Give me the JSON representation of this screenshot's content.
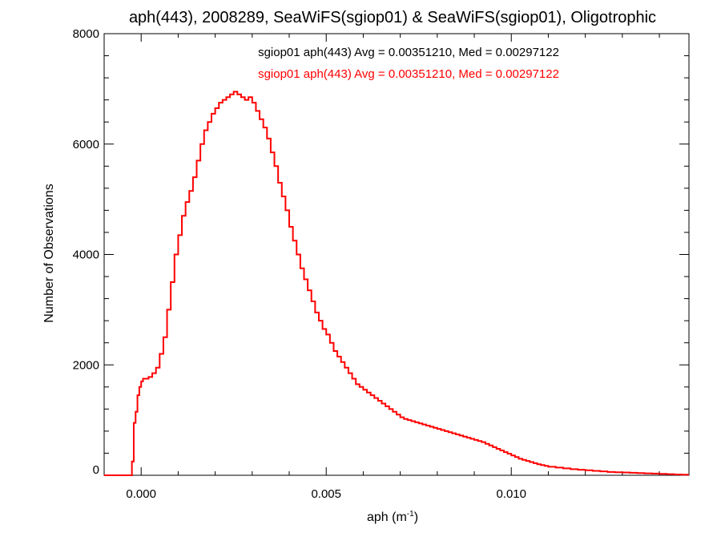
{
  "chart_data": {
    "type": "line",
    "step": true,
    "title": "aph(443), 2008289, SeaWiFS(sgiop01) & SeaWiFS(sgiop01), Oligotrophic",
    "xlabel": "aph (m",
    "xlabel_sup": "-1",
    "xlabel_close": ")",
    "ylabel": "Number of Observations",
    "xlim": [
      -0.001,
      0.0148
    ],
    "ylim": [
      0,
      8000
    ],
    "grid": false,
    "x_ticks": [
      0.0,
      0.005,
      0.01
    ],
    "x_tick_labels": [
      "0.000",
      "0.005",
      "0.010"
    ],
    "y_ticks": [
      0,
      2000,
      4000,
      6000,
      8000
    ],
    "y_tick_labels": [
      "0",
      "2000",
      "4000",
      "6000",
      "8000"
    ],
    "annotations": [
      {
        "text": "sgiop01 aph(443) Avg = 0.00351210, Med = 0.00297122",
        "color": "#000000"
      },
      {
        "text": "sgiop01 aph(443) Avg = 0.00351210, Med = 0.00297122",
        "color": "#ff0000"
      }
    ],
    "series": [
      {
        "color": "#ff0000",
        "points": [
          [
            -0.001,
            0
          ],
          [
            -0.0003,
            0
          ],
          [
            -0.00025,
            250
          ],
          [
            -0.0002,
            950
          ],
          [
            -0.00015,
            1150
          ],
          [
            -0.0001,
            1450
          ],
          [
            -5e-05,
            1600
          ],
          [
            0.0,
            1700
          ],
          [
            5e-05,
            1750
          ],
          [
            0.0001,
            1750
          ],
          [
            0.0002,
            1780
          ],
          [
            0.0003,
            1850
          ],
          [
            0.0004,
            1950
          ],
          [
            0.0005,
            2200
          ],
          [
            0.0006,
            2500
          ],
          [
            0.0007,
            3000
          ],
          [
            0.0008,
            3500
          ],
          [
            0.0009,
            4000
          ],
          [
            0.001,
            4350
          ],
          [
            0.0011,
            4700
          ],
          [
            0.0012,
            4950
          ],
          [
            0.0013,
            5150
          ],
          [
            0.0014,
            5400
          ],
          [
            0.0015,
            5700
          ],
          [
            0.0016,
            6000
          ],
          [
            0.0017,
            6250
          ],
          [
            0.0018,
            6400
          ],
          [
            0.0019,
            6550
          ],
          [
            0.002,
            6650
          ],
          [
            0.0021,
            6750
          ],
          [
            0.0022,
            6800
          ],
          [
            0.0023,
            6850
          ],
          [
            0.0024,
            6900
          ],
          [
            0.0025,
            6950
          ],
          [
            0.0026,
            6900
          ],
          [
            0.0027,
            6850
          ],
          [
            0.0028,
            6800
          ],
          [
            0.0029,
            6850
          ],
          [
            0.003,
            6750
          ],
          [
            0.0031,
            6600
          ],
          [
            0.0032,
            6450
          ],
          [
            0.0033,
            6300
          ],
          [
            0.0034,
            6100
          ],
          [
            0.0035,
            5850
          ],
          [
            0.0036,
            5600
          ],
          [
            0.0037,
            5300
          ],
          [
            0.0038,
            5050
          ],
          [
            0.0039,
            4800
          ],
          [
            0.004,
            4500
          ],
          [
            0.0041,
            4250
          ],
          [
            0.0042,
            4000
          ],
          [
            0.0043,
            3750
          ],
          [
            0.0044,
            3550
          ],
          [
            0.0045,
            3350
          ],
          [
            0.0046,
            3150
          ],
          [
            0.0047,
            2950
          ],
          [
            0.0048,
            2800
          ],
          [
            0.0049,
            2650
          ],
          [
            0.005,
            2550
          ],
          [
            0.0051,
            2400
          ],
          [
            0.0052,
            2250
          ],
          [
            0.0053,
            2150
          ],
          [
            0.0054,
            2050
          ],
          [
            0.0055,
            1950
          ],
          [
            0.0056,
            1850
          ],
          [
            0.0057,
            1750
          ],
          [
            0.0058,
            1650
          ],
          [
            0.0059,
            1600
          ],
          [
            0.006,
            1550
          ],
          [
            0.0061,
            1500
          ],
          [
            0.0062,
            1450
          ],
          [
            0.0063,
            1400
          ],
          [
            0.0064,
            1350
          ],
          [
            0.0065,
            1300
          ],
          [
            0.0066,
            1250
          ],
          [
            0.0067,
            1200
          ],
          [
            0.0068,
            1150
          ],
          [
            0.0069,
            1100
          ],
          [
            0.007,
            1050
          ],
          [
            0.0071,
            1020
          ],
          [
            0.0072,
            1000
          ],
          [
            0.0073,
            980
          ],
          [
            0.0074,
            960
          ],
          [
            0.0075,
            940
          ],
          [
            0.0076,
            920
          ],
          [
            0.0077,
            900
          ],
          [
            0.0078,
            880
          ],
          [
            0.0079,
            860
          ],
          [
            0.008,
            840
          ],
          [
            0.0081,
            820
          ],
          [
            0.0082,
            800
          ],
          [
            0.0083,
            780
          ],
          [
            0.0084,
            760
          ],
          [
            0.0085,
            740
          ],
          [
            0.0086,
            720
          ],
          [
            0.0087,
            700
          ],
          [
            0.0088,
            680
          ],
          [
            0.0089,
            660
          ],
          [
            0.009,
            640
          ],
          [
            0.0091,
            620
          ],
          [
            0.0092,
            600
          ],
          [
            0.0093,
            570
          ],
          [
            0.0094,
            540
          ],
          [
            0.0095,
            510
          ],
          [
            0.0096,
            480
          ],
          [
            0.0097,
            450
          ],
          [
            0.0098,
            420
          ],
          [
            0.0099,
            390
          ],
          [
            0.01,
            360
          ],
          [
            0.0101,
            330
          ],
          [
            0.0102,
            300
          ],
          [
            0.0103,
            280
          ],
          [
            0.0104,
            260
          ],
          [
            0.0105,
            240
          ],
          [
            0.0106,
            220
          ],
          [
            0.0107,
            200
          ],
          [
            0.0108,
            185
          ],
          [
            0.0109,
            170
          ],
          [
            0.011,
            155
          ],
          [
            0.0112,
            140
          ],
          [
            0.0114,
            125
          ],
          [
            0.0116,
            110
          ],
          [
            0.0118,
            100
          ],
          [
            0.012,
            90
          ],
          [
            0.0122,
            80
          ],
          [
            0.0124,
            70
          ],
          [
            0.0126,
            60
          ],
          [
            0.0128,
            55
          ],
          [
            0.013,
            50
          ],
          [
            0.0132,
            45
          ],
          [
            0.0134,
            40
          ],
          [
            0.0136,
            35
          ],
          [
            0.0138,
            30
          ],
          [
            0.014,
            25
          ],
          [
            0.0142,
            20
          ],
          [
            0.0144,
            15
          ],
          [
            0.0146,
            10
          ],
          [
            0.0148,
            10
          ]
        ]
      }
    ]
  }
}
